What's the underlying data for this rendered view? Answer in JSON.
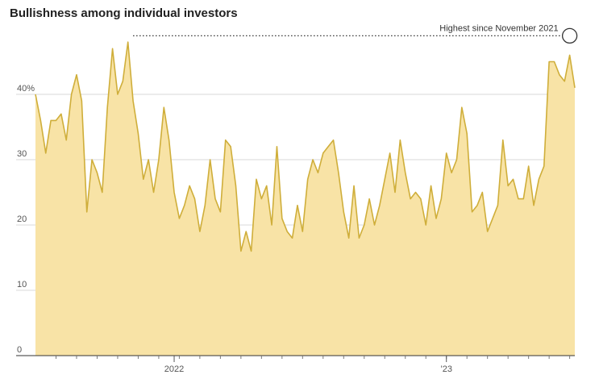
{
  "chart_data": {
    "type": "area",
    "title": "Bullishness among individual investors",
    "ylabel": "",
    "xlabel": "",
    "ylim": [
      0,
      50
    ],
    "y_ticks": [
      {
        "value": 0,
        "label": "0"
      },
      {
        "value": 10,
        "label": "10"
      },
      {
        "value": 20,
        "label": "20"
      },
      {
        "value": 30,
        "label": "30"
      },
      {
        "value": 40,
        "label": "40%"
      }
    ],
    "x_ticks": [
      {
        "label": "2022",
        "index": 27
      },
      {
        "label": "’23",
        "index": 80
      }
    ],
    "grid": true,
    "colors": {
      "fill": "#f8e3a6",
      "line": "#cfae3a",
      "grid": "#d9d9d9",
      "axis": "#333333"
    },
    "series": [
      {
        "values": [
          40,
          36,
          31,
          36,
          36,
          37,
          33,
          40,
          43,
          39,
          22,
          30,
          28,
          25,
          38,
          47,
          40,
          42,
          48,
          39,
          34,
          27,
          30,
          25,
          30,
          38,
          33,
          25,
          21,
          23,
          26,
          24,
          19,
          23,
          30,
          24,
          22,
          33,
          32,
          26,
          16,
          19,
          16,
          27,
          24,
          26,
          20,
          32,
          21,
          19,
          18,
          23,
          19,
          27,
          30,
          28,
          31,
          32,
          33,
          28,
          22,
          18,
          26,
          18,
          20,
          24,
          20,
          23,
          27,
          31,
          25,
          33,
          28,
          24,
          25,
          24,
          20,
          26,
          21,
          24,
          31,
          28,
          30,
          38,
          34,
          22,
          23,
          25,
          19,
          21,
          23,
          33,
          26,
          27,
          24,
          24,
          29,
          23,
          27,
          29,
          45,
          45,
          43,
          42,
          46,
          41
        ]
      }
    ],
    "annotation": {
      "text": "Highest since November 2021",
      "from_index": 19,
      "to_index": 104,
      "value": 46
    }
  }
}
